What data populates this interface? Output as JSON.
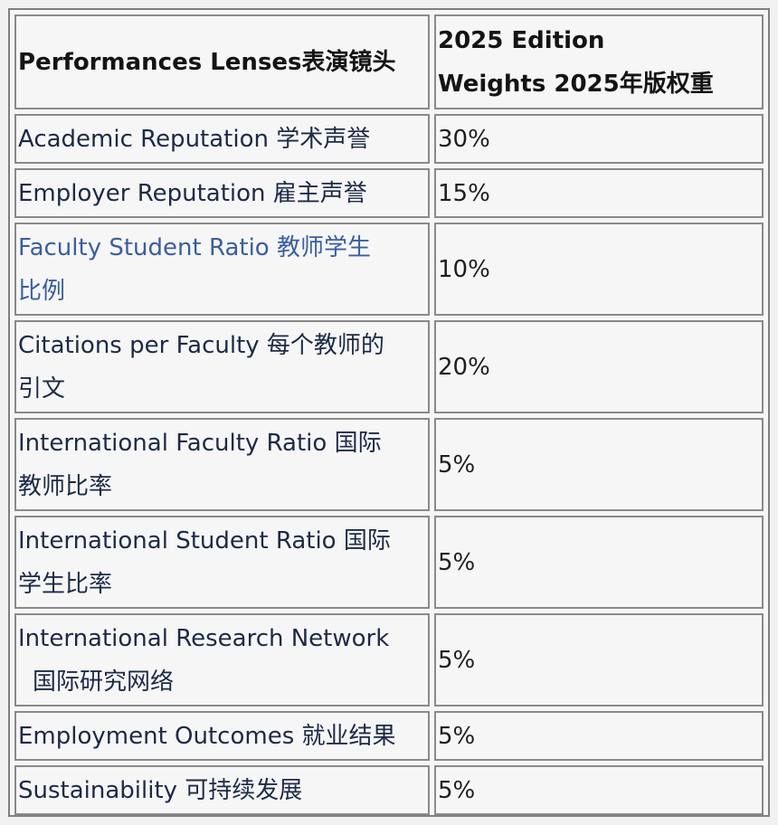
{
  "table": {
    "headers": {
      "lens": "Performances Lenses表演镜头",
      "weight_line1": "2025 Edition",
      "weight_line2": "Weights 2025年版权重"
    },
    "rows": [
      {
        "lens": "Academic Reputation  学术声誉",
        "weight": "30%"
      },
      {
        "lens": "Employer Reputation  雇主声誉",
        "weight": "15%"
      },
      {
        "lens_line1": "Faculty Student Ratio  教师学生",
        "lens_line2": "比例",
        "weight": "10%",
        "link": true
      },
      {
        "lens_line1": "Citations per Faculty  每个教师的",
        "lens_line2": "引文",
        "weight": "20%"
      },
      {
        "lens_line1": "International Faculty Ratio  国际",
        "lens_line2": "教师比率",
        "weight": "5%"
      },
      {
        "lens_line1": "International Student Ratio  国际",
        "lens_line2": "学生比率",
        "weight": "5%"
      },
      {
        "lens_line1": "International Research Network",
        "lens_line2": "国际研究网络",
        "weight": "5%"
      },
      {
        "lens": "Employment Outcomes  就业结果",
        "weight": "5%"
      },
      {
        "lens": "Sustainability  可持续发展",
        "weight": "5%"
      }
    ]
  },
  "colors": {
    "body_text": "#1c2a47",
    "link_text": "#3a5ea0",
    "border": "#8a8a8a",
    "background": "#f6f6f6"
  }
}
